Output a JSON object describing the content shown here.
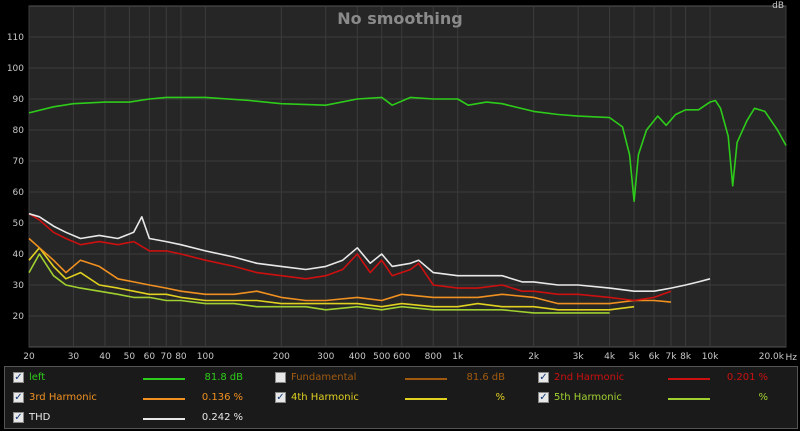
{
  "chart_data": {
    "type": "line",
    "title": "No smoothing",
    "ylabel": "dB",
    "xlabel": "Hz",
    "x_scale": "log",
    "xlim": [
      20,
      20000
    ],
    "ylim": [
      10,
      120
    ],
    "grid": true,
    "x_ticks": [
      {
        "v": 20,
        "label": "20"
      },
      {
        "v": 30,
        "label": "30"
      },
      {
        "v": 40,
        "label": "40"
      },
      {
        "v": 50,
        "label": "50"
      },
      {
        "v": 60,
        "label": "60"
      },
      {
        "v": 70,
        "label": "70"
      },
      {
        "v": 80,
        "label": "80"
      },
      {
        "v": 100,
        "label": "100"
      },
      {
        "v": 200,
        "label": "200"
      },
      {
        "v": 300,
        "label": "300"
      },
      {
        "v": 400,
        "label": "400"
      },
      {
        "v": 500,
        "label": "500"
      },
      {
        "v": 600,
        "label": "600"
      },
      {
        "v": 800,
        "label": "800"
      },
      {
        "v": 1000,
        "label": "1k"
      },
      {
        "v": 2000,
        "label": "2k"
      },
      {
        "v": 3000,
        "label": "3k"
      },
      {
        "v": 4000,
        "label": "4k"
      },
      {
        "v": 5000,
        "label": "5k"
      },
      {
        "v": 6000,
        "label": "6k"
      },
      {
        "v": 7000,
        "label": "7k"
      },
      {
        "v": 8000,
        "label": "8k"
      },
      {
        "v": 10000,
        "label": "10k"
      },
      {
        "v": 20000,
        "label": "20.0k"
      }
    ],
    "y_ticks": [
      20,
      30,
      40,
      50,
      60,
      70,
      80,
      90,
      100,
      110
    ],
    "series": [
      {
        "name": "left",
        "color": "#2ecc1a",
        "points": [
          [
            20,
            85.5
          ],
          [
            25,
            87.5
          ],
          [
            30,
            88.5
          ],
          [
            40,
            89
          ],
          [
            50,
            89
          ],
          [
            60,
            90
          ],
          [
            70,
            90.5
          ],
          [
            100,
            90.5
          ],
          [
            150,
            89.5
          ],
          [
            200,
            88.5
          ],
          [
            300,
            88
          ],
          [
            400,
            90
          ],
          [
            500,
            90.5
          ],
          [
            550,
            88
          ],
          [
            650,
            90.5
          ],
          [
            800,
            90
          ],
          [
            1000,
            90
          ],
          [
            1100,
            88
          ],
          [
            1300,
            89
          ],
          [
            1500,
            88.5
          ],
          [
            2000,
            86
          ],
          [
            2500,
            85
          ],
          [
            3000,
            84.5
          ],
          [
            4000,
            84
          ],
          [
            4500,
            81
          ],
          [
            4800,
            72
          ],
          [
            5000,
            57
          ],
          [
            5200,
            72
          ],
          [
            5600,
            80
          ],
          [
            6200,
            84.5
          ],
          [
            6700,
            81.5
          ],
          [
            7300,
            85
          ],
          [
            8000,
            86.5
          ],
          [
            9000,
            86.5
          ],
          [
            10000,
            89
          ],
          [
            10500,
            89.5
          ],
          [
            11000,
            87
          ],
          [
            11800,
            78
          ],
          [
            12300,
            62
          ],
          [
            12800,
            76
          ],
          [
            14000,
            83
          ],
          [
            15000,
            87
          ],
          [
            16500,
            86
          ],
          [
            18500,
            80
          ],
          [
            20000,
            75
          ]
        ]
      },
      {
        "name": "2nd Harmonic",
        "color": "#cc1010",
        "points": [
          [
            20,
            53
          ],
          [
            22,
            51
          ],
          [
            25,
            47
          ],
          [
            28,
            45
          ],
          [
            32,
            43
          ],
          [
            38,
            44
          ],
          [
            45,
            43
          ],
          [
            52,
            44
          ],
          [
            60,
            41
          ],
          [
            70,
            41
          ],
          [
            80,
            40
          ],
          [
            100,
            38
          ],
          [
            130,
            36
          ],
          [
            160,
            34
          ],
          [
            200,
            33
          ],
          [
            250,
            32
          ],
          [
            300,
            33
          ],
          [
            350,
            35
          ],
          [
            400,
            40
          ],
          [
            450,
            34
          ],
          [
            500,
            38
          ],
          [
            550,
            33
          ],
          [
            650,
            35
          ],
          [
            700,
            37
          ],
          [
            800,
            30
          ],
          [
            1000,
            29
          ],
          [
            1200,
            29
          ],
          [
            1500,
            30
          ],
          [
            1800,
            28
          ],
          [
            2000,
            28
          ],
          [
            2500,
            27
          ],
          [
            3000,
            27
          ],
          [
            4000,
            26
          ],
          [
            5000,
            25
          ],
          [
            6000,
            26
          ],
          [
            7000,
            28
          ]
        ]
      },
      {
        "name": "3rd Harmonic",
        "color": "#f09020",
        "points": [
          [
            20,
            45
          ],
          [
            22,
            42
          ],
          [
            25,
            38
          ],
          [
            28,
            34
          ],
          [
            32,
            38
          ],
          [
            38,
            36
          ],
          [
            45,
            32
          ],
          [
            52,
            31
          ],
          [
            60,
            30
          ],
          [
            70,
            29
          ],
          [
            80,
            28
          ],
          [
            100,
            27
          ],
          [
            130,
            27
          ],
          [
            160,
            28
          ],
          [
            200,
            26
          ],
          [
            250,
            25
          ],
          [
            300,
            25
          ],
          [
            400,
            26
          ],
          [
            500,
            25
          ],
          [
            600,
            27
          ],
          [
            800,
            26
          ],
          [
            1000,
            26
          ],
          [
            1200,
            26
          ],
          [
            1500,
            27
          ],
          [
            2000,
            26
          ],
          [
            2500,
            24
          ],
          [
            3000,
            24
          ],
          [
            4000,
            24
          ],
          [
            5000,
            25
          ],
          [
            6000,
            25
          ],
          [
            7000,
            24.5
          ]
        ]
      },
      {
        "name": "4th Harmonic",
        "color": "#e0d020",
        "points": [
          [
            20,
            38
          ],
          [
            22,
            42
          ],
          [
            25,
            36
          ],
          [
            28,
            32
          ],
          [
            32,
            34
          ],
          [
            38,
            30
          ],
          [
            45,
            29
          ],
          [
            52,
            28
          ],
          [
            60,
            27
          ],
          [
            70,
            27
          ],
          [
            80,
            26
          ],
          [
            100,
            25
          ],
          [
            130,
            25
          ],
          [
            160,
            25
          ],
          [
            200,
            24
          ],
          [
            250,
            24
          ],
          [
            300,
            24
          ],
          [
            400,
            24
          ],
          [
            500,
            23
          ],
          [
            600,
            24
          ],
          [
            800,
            23
          ],
          [
            1000,
            23
          ],
          [
            1200,
            24
          ],
          [
            1500,
            23
          ],
          [
            2000,
            23
          ],
          [
            2500,
            22
          ],
          [
            3000,
            22
          ],
          [
            4000,
            22
          ],
          [
            5000,
            23
          ]
        ]
      },
      {
        "name": "5th Harmonic",
        "color": "#a0d030",
        "points": [
          [
            20,
            34
          ],
          [
            22,
            40
          ],
          [
            25,
            33
          ],
          [
            28,
            30
          ],
          [
            32,
            29
          ],
          [
            38,
            28
          ],
          [
            45,
            27
          ],
          [
            52,
            26
          ],
          [
            60,
            26
          ],
          [
            70,
            25
          ],
          [
            80,
            25
          ],
          [
            100,
            24
          ],
          [
            130,
            24
          ],
          [
            160,
            23
          ],
          [
            200,
            23
          ],
          [
            250,
            23
          ],
          [
            300,
            22
          ],
          [
            400,
            23
          ],
          [
            500,
            22
          ],
          [
            600,
            23
          ],
          [
            800,
            22
          ],
          [
            1000,
            22
          ],
          [
            1200,
            22
          ],
          [
            1500,
            22
          ],
          [
            2000,
            21
          ],
          [
            2500,
            21
          ],
          [
            3000,
            21
          ],
          [
            4000,
            21
          ]
        ]
      },
      {
        "name": "THD",
        "color": "#e8e8e8",
        "points": [
          [
            20,
            53
          ],
          [
            22,
            52
          ],
          [
            25,
            49
          ],
          [
            28,
            47
          ],
          [
            32,
            45
          ],
          [
            38,
            46
          ],
          [
            45,
            45
          ],
          [
            52,
            47
          ],
          [
            56,
            52
          ],
          [
            60,
            45
          ],
          [
            70,
            44
          ],
          [
            80,
            43
          ],
          [
            100,
            41
          ],
          [
            130,
            39
          ],
          [
            160,
            37
          ],
          [
            200,
            36
          ],
          [
            250,
            35
          ],
          [
            300,
            36
          ],
          [
            350,
            38
          ],
          [
            400,
            42
          ],
          [
            450,
            37
          ],
          [
            500,
            40
          ],
          [
            550,
            36
          ],
          [
            650,
            37
          ],
          [
            700,
            38
          ],
          [
            800,
            34
          ],
          [
            1000,
            33
          ],
          [
            1200,
            33
          ],
          [
            1500,
            33
          ],
          [
            1800,
            31
          ],
          [
            2000,
            31
          ],
          [
            2500,
            30
          ],
          [
            3000,
            30
          ],
          [
            4000,
            29
          ],
          [
            5000,
            28
          ],
          [
            6000,
            28
          ],
          [
            7000,
            29
          ],
          [
            8000,
            30
          ],
          [
            9000,
            31
          ],
          [
            10000,
            32
          ]
        ]
      }
    ]
  },
  "legend": {
    "items": [
      {
        "name": "left",
        "checked": true,
        "color": "#2ecc1a",
        "value": "81.8",
        "unit": "dB"
      },
      {
        "name": "Fundamental",
        "checked": false,
        "color": "#a05a10",
        "value": "81.6",
        "unit": "dB"
      },
      {
        "name": "2nd Harmonic",
        "checked": true,
        "color": "#cc1010",
        "value": "0.201",
        "unit": "%"
      },
      {
        "name": "3rd Harmonic",
        "checked": true,
        "color": "#f09020",
        "value": "0.136",
        "unit": "%"
      },
      {
        "name": "4th Harmonic",
        "checked": true,
        "color": "#e0d020",
        "value": "",
        "unit": "%"
      },
      {
        "name": "5th Harmonic",
        "checked": true,
        "color": "#a0d030",
        "value": "",
        "unit": "%"
      },
      {
        "name": "THD",
        "checked": true,
        "color": "#e8e8e8",
        "value": "0.242",
        "unit": "%"
      }
    ]
  }
}
